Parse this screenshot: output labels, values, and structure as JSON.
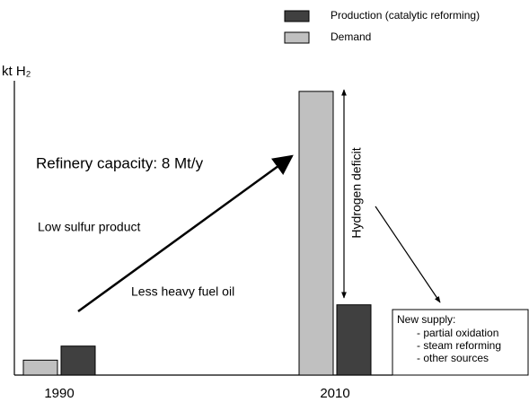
{
  "chart_data": {
    "type": "bar",
    "y_label": "kt H₂",
    "categories": [
      "1990",
      "2010"
    ],
    "series": [
      {
        "name": "Demand",
        "color": "#c0c0c0",
        "values": [
          17,
          323
        ]
      },
      {
        "name": "Production (catalytic reforming)",
        "color": "#404040",
        "values": [
          33,
          80
        ]
      }
    ],
    "ylim": [
      0,
      330
    ],
    "annotations": [
      "Refinery capacity: 8 Mt/y",
      "Low sulfur product",
      "Less heavy fuel oil",
      "Hydrogen deficit"
    ],
    "note_box": [
      "New supply:",
      "- partial oxidation",
      "- steam reforming",
      "- other sources"
    ]
  }
}
